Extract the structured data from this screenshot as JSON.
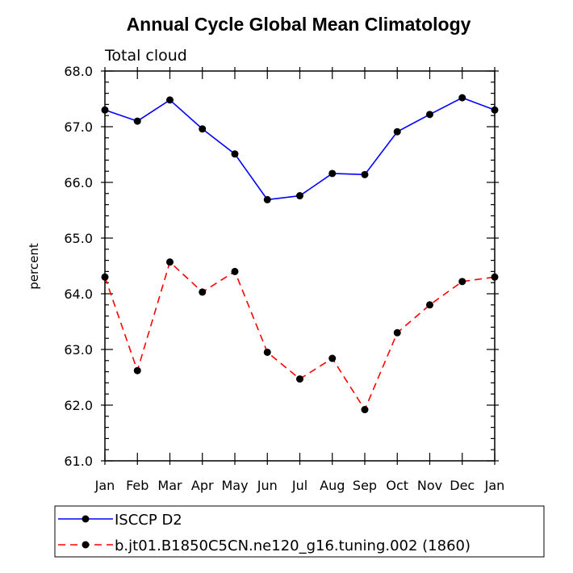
{
  "chart_data": {
    "type": "line",
    "title": "Annual Cycle Global Mean Climatology",
    "subtitle": "Total cloud",
    "xlabel": "",
    "ylabel": "percent",
    "ylim": [
      61.0,
      68.0
    ],
    "y_ticks": [
      "61.0",
      "62.0",
      "63.0",
      "64.0",
      "65.0",
      "66.0",
      "67.0",
      "68.0"
    ],
    "categories": [
      "Jan",
      "Feb",
      "Mar",
      "Apr",
      "May",
      "Jun",
      "Jul",
      "Aug",
      "Sep",
      "Oct",
      "Nov",
      "Dec",
      "Jan"
    ],
    "series": [
      {
        "name": "ISCCP D2",
        "color": "#0000ff",
        "dash": "solid",
        "values": [
          67.3,
          67.1,
          67.48,
          66.96,
          66.51,
          65.69,
          65.76,
          66.16,
          66.14,
          66.91,
          67.22,
          67.52,
          67.3
        ]
      },
      {
        "name": "b.jt01.B1850C5CN.ne120_g16.tuning.002 (1860)",
        "color": "#ff0000",
        "dash": "dashed",
        "values": [
          64.3,
          62.62,
          64.57,
          64.03,
          64.4,
          62.95,
          62.47,
          62.84,
          61.92,
          63.3,
          63.8,
          64.22,
          64.3
        ]
      }
    ],
    "legend_position": "bottom"
  }
}
